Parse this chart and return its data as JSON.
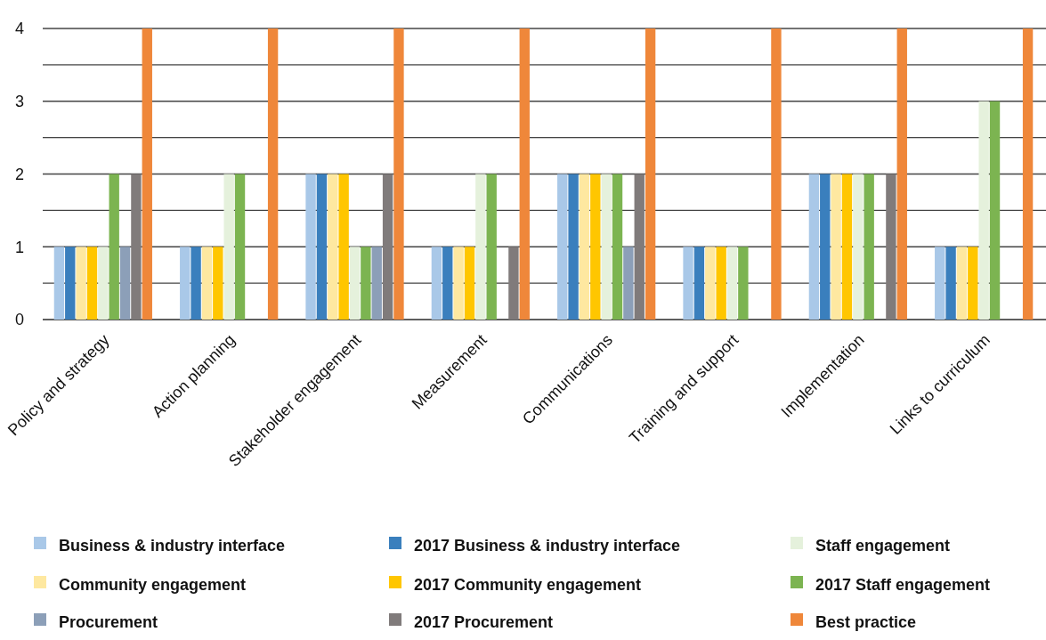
{
  "chart_data": {
    "type": "bar",
    "categories": [
      "Policy and strategy",
      "Action planning",
      "Stakeholder engagement",
      "Measurement",
      "Communications",
      "Training and support",
      "Implementation",
      "Links to curriculum"
    ],
    "series": [
      {
        "name": "Business & industry interface",
        "color": "#a9c8e8",
        "values": [
          1,
          1,
          2,
          1,
          2,
          1,
          2,
          1
        ]
      },
      {
        "name": "2017 Business & industry interface",
        "color": "#3a7fbd",
        "values": [
          1,
          1,
          2,
          1,
          2,
          1,
          2,
          1
        ]
      },
      {
        "name": "Community engagement",
        "color": "#fee8a0",
        "values": [
          1,
          1,
          2,
          1,
          2,
          1,
          2,
          1
        ]
      },
      {
        "name": "2017 Community engagement",
        "color": "#ffc600",
        "values": [
          1,
          1,
          2,
          1,
          2,
          1,
          2,
          1
        ]
      },
      {
        "name": "Staff engagement",
        "color": "#e5f1dc",
        "values": [
          1,
          2,
          1,
          2,
          2,
          1,
          2,
          3
        ]
      },
      {
        "name": "2017 Staff engagement",
        "color": "#7cb451",
        "values": [
          2,
          2,
          1,
          2,
          2,
          1,
          2,
          3
        ]
      },
      {
        "name": "Procurement",
        "color": "#8c9fb8",
        "values": [
          1,
          null,
          1,
          null,
          1,
          null,
          null,
          null
        ]
      },
      {
        "name": "2017 Procurement",
        "color": "#807b7b",
        "values": [
          2,
          null,
          2,
          1,
          2,
          null,
          2,
          null
        ]
      },
      {
        "name": "Best practice",
        "color": "#ef873a",
        "values": [
          4,
          4,
          4,
          4,
          4,
          4,
          4,
          4
        ]
      }
    ],
    "ylim": [
      0,
      4
    ],
    "yticks": [
      0,
      {
        "value": 0.5,
        "label": null
      },
      1,
      {
        "value": 1.5,
        "label": null
      },
      2,
      {
        "value": 2.5,
        "label": null
      },
      3,
      {
        "value": 3.5,
        "label": null
      },
      4
    ],
    "grid": "y",
    "legend": "bottom"
  }
}
